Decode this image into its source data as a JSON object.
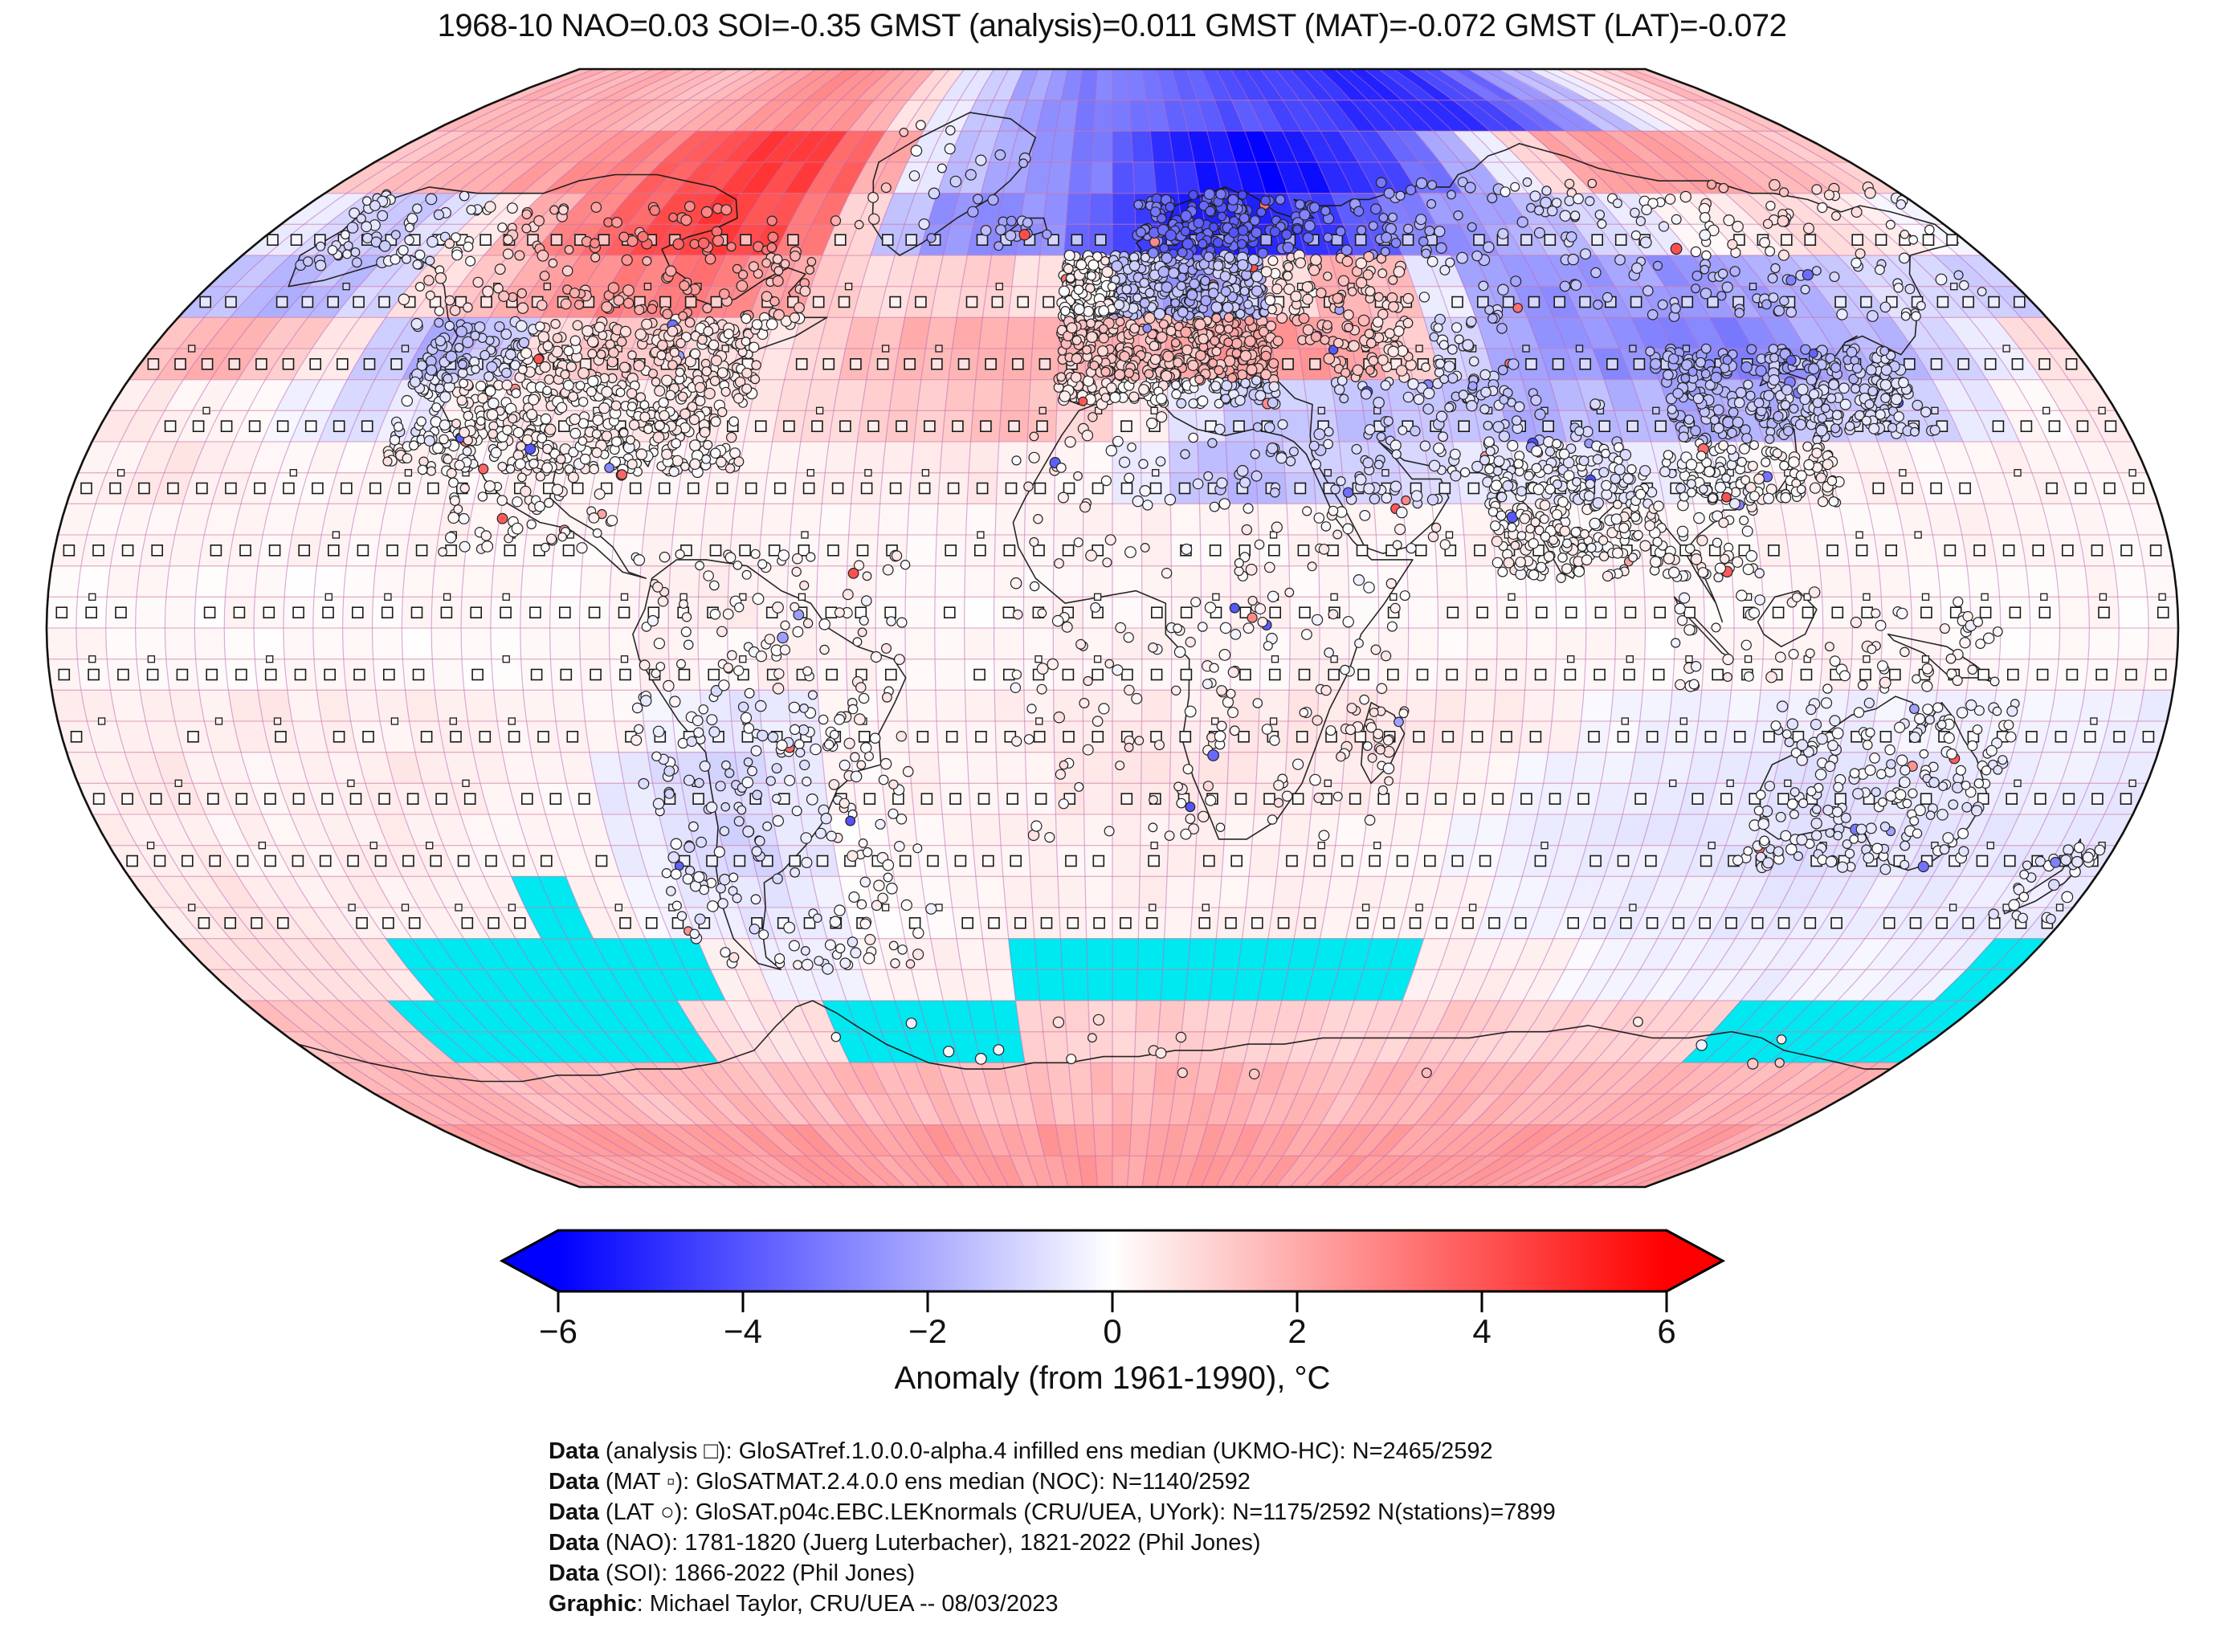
{
  "title": "1968-10 NAO=0.03 SOI=-0.35 GMST (analysis)=0.011 GMST (MAT)=-0.072 GMST (LAT)=-0.072",
  "colorbar": {
    "label": "Anomaly (from 1961-1990), °C",
    "ticks": [
      "−6",
      "−4",
      "−2",
      "0",
      "2",
      "4",
      "6"
    ],
    "tick_values": [
      -6,
      -4,
      -2,
      0,
      2,
      4,
      6
    ],
    "min": -6,
    "max": 6,
    "color_negative": "#0000ff",
    "color_zero": "#ffffff",
    "color_positive": "#ff0000",
    "missing_color": "#00e8f0"
  },
  "footnotes": [
    {
      "prefix": "Data",
      "rest": " (analysis □): GloSATref.1.0.0.0-alpha.4 infilled ens median (UKMO-HC): N=2465/2592"
    },
    {
      "prefix": "Data",
      "rest": " (MAT ▫): GloSATMAT.2.4.0.0 ens median (NOC): N=1140/2592"
    },
    {
      "prefix": "Data",
      "rest": " (LAT ○): GloSAT.p04c.EBC.LEKnormals (CRU/UEA, UYork): N=1175/2592 N(stations)=7899"
    },
    {
      "prefix": "Data",
      "rest": " (NAO): 1781-1820 (Juerg Luterbacher), 1821-2022 (Phil Jones)"
    },
    {
      "prefix": "Data",
      "rest": " (SOI): 1866-2022 (Phil Jones)"
    },
    {
      "prefix": "Graphic",
      "rest": ": Michael Taylor, CRU/UEA -- 08/03/2023"
    }
  ],
  "markers": {
    "analysis": {
      "symbol": "□",
      "coverage": "2465/2592"
    },
    "mat": {
      "symbol": "▫",
      "coverage": "1140/2592"
    },
    "lat": {
      "symbol": "○",
      "coverage": "1175/2592",
      "stations": 7899
    }
  },
  "chart_data": {
    "type": "heatmap",
    "subtype": "global-temperature-anomaly-map",
    "projection": "robinson-like",
    "month": "1968-10",
    "indices": {
      "NAO": 0.03,
      "SOI": -0.35,
      "GMST_analysis": 0.011,
      "GMST_MAT": -0.072,
      "GMST_LAT": -0.072
    },
    "units": "°C anomaly from 1961-1990",
    "value_range": [
      -6,
      6
    ],
    "missing_value_marker": "C",
    "missing_meaning": "cyan grid cells with no data (Southern Ocean)",
    "grid": {
      "lat_start": 90,
      "lat_step": -10,
      "lon_start": -180,
      "lon_step": 10,
      "rows": 18,
      "cols": 36
    },
    "anomaly_grid": [
      [
        1.8,
        1.8,
        1.8,
        1.8,
        1.8,
        1.6,
        1.8,
        2.0,
        2.4,
        2.6,
        2.4,
        2.0,
        0.8,
        -0.5,
        -1.2,
        -2.0,
        -2.6,
        -3.0,
        -3.2,
        -3.5,
        -3.8,
        -4.0,
        -4.2,
        -4.5,
        -4.8,
        -5.0,
        -5.0,
        -4.8,
        -4.2,
        -3.5,
        -2.5,
        -1.5,
        -0.5,
        0.5,
        1.0,
        1.5
      ],
      [
        1.2,
        1.5,
        1.8,
        2.0,
        2.2,
        2.5,
        3.0,
        3.6,
        4.2,
        4.6,
        4.4,
        3.6,
        2.0,
        -0.5,
        -1.5,
        -2.0,
        -2.5,
        -3.0,
        -4.0,
        -5.0,
        -5.5,
        -5.8,
        -5.5,
        -5.0,
        -4.5,
        -3.5,
        -2.0,
        -0.5,
        1.0,
        2.0,
        2.2,
        2.2,
        2.0,
        1.8,
        1.5,
        1.2
      ],
      [
        -0.5,
        -1.0,
        -1.2,
        -0.8,
        0.5,
        1.8,
        2.8,
        3.6,
        4.4,
        4.6,
        4.2,
        3.2,
        1.0,
        -1.5,
        -2.5,
        -2.8,
        -2.5,
        -3.5,
        -4.5,
        -5.2,
        -5.2,
        -5.0,
        -4.5,
        -3.8,
        -3.0,
        -2.5,
        -2.0,
        -1.5,
        -1.0,
        -0.5,
        0.2,
        0.5,
        0.8,
        0.8,
        0.5,
        -0.2
      ],
      [
        -1.5,
        -1.8,
        -1.5,
        -1.0,
        0.8,
        1.5,
        2.0,
        2.5,
        3.0,
        3.2,
        2.8,
        2.2,
        1.2,
        0.8,
        1.0,
        1.2,
        0.8,
        0.3,
        -1.8,
        -2.5,
        -2.0,
        0.8,
        1.8,
        1.5,
        -0.5,
        -2.0,
        -2.5,
        -2.5,
        -2.2,
        -2.5,
        -2.2,
        -1.8,
        -1.2,
        -0.8,
        -0.8,
        -1.2
      ],
      [
        1.5,
        1.8,
        1.2,
        0.5,
        -1.2,
        -1.8,
        -1.2,
        0.8,
        1.4,
        1.2,
        0.8,
        0.6,
        1.0,
        1.5,
        1.8,
        1.8,
        2.0,
        1.8,
        1.8,
        2.2,
        2.6,
        2.4,
        2.0,
        1.2,
        -1.0,
        -2.0,
        -2.4,
        -2.6,
        -2.8,
        -3.0,
        -2.6,
        -2.0,
        -1.6,
        -1.0,
        -0.5,
        0.8
      ],
      [
        0.5,
        0.3,
        0.2,
        -0.3,
        -0.8,
        -0.5,
        0.3,
        0.5,
        0.4,
        0.5,
        0.6,
        0.5,
        0.8,
        1.0,
        1.2,
        1.4,
        1.5,
        1.0,
        0.4,
        -0.6,
        -1.2,
        -1.2,
        -1.5,
        -1.2,
        -1.5,
        -1.8,
        -1.5,
        -1.8,
        -2.0,
        -1.8,
        -1.5,
        -1.2,
        -1.0,
        -0.5,
        0.2,
        0.4
      ],
      [
        0.3,
        0.5,
        0.4,
        0.2,
        0.2,
        0.3,
        0.2,
        0.3,
        0.3,
        0.2,
        0.2,
        0.3,
        0.3,
        0.4,
        0.4,
        0.5,
        0.4,
        0.2,
        -0.5,
        -1.4,
        -1.6,
        -1.2,
        -1.0,
        -0.8,
        -0.6,
        -0.5,
        -0.6,
        -0.4,
        -0.2,
        0.2,
        0.3,
        0.3,
        0.2,
        0.3,
        0.3,
        0.3
      ],
      [
        0.2,
        0.3,
        0.2,
        0.2,
        0.3,
        0.2,
        0.3,
        0.2,
        0.2,
        0.2,
        0.3,
        0.3,
        0.2,
        0.2,
        0.2,
        0.2,
        0.2,
        0.3,
        0.3,
        0.2,
        0.2,
        0.3,
        0.2,
        0.2,
        0.3,
        0.2,
        0.2,
        0.2,
        0.2,
        0.3,
        0.2,
        0.2,
        0.3,
        0.2,
        0.2,
        0.2
      ],
      [
        0.1,
        0.2,
        0.1,
        0.2,
        0.1,
        0.1,
        0.2,
        0.2,
        0.1,
        0.2,
        0.3,
        0.4,
        0.3,
        0.2,
        0.2,
        0.1,
        0.2,
        0.3,
        0.2,
        0.2,
        0.3,
        0.2,
        0.1,
        0.2,
        0.2,
        0.1,
        0.2,
        0.2,
        0.1,
        0.2,
        0.2,
        0.2,
        0.1,
        0.1,
        0.2,
        0.1
      ],
      [
        0.2,
        0.1,
        0.2,
        0.1,
        0.2,
        0.2,
        0.1,
        0.1,
        0.2,
        0.2,
        0.3,
        0.2,
        0.4,
        0.3,
        0.2,
        0.2,
        0.2,
        0.3,
        0.3,
        0.2,
        0.2,
        0.3,
        0.2,
        0.2,
        0.3,
        0.2,
        0.2,
        0.1,
        0.2,
        0.2,
        0.3,
        0.2,
        0.2,
        0.1,
        0.2,
        0.2
      ],
      [
        0.4,
        0.3,
        0.4,
        0.5,
        0.4,
        0.3,
        0.4,
        0.3,
        0.3,
        0.2,
        -0.3,
        -0.6,
        -0.5,
        0.2,
        0.3,
        0.3,
        0.4,
        0.5,
        0.5,
        0.4,
        0.5,
        0.6,
        0.6,
        0.5,
        0.4,
        0.3,
        -0.2,
        -0.3,
        -0.3,
        -0.4,
        -0.4,
        -0.3,
        -0.3,
        -0.2,
        -0.3,
        -0.4
      ],
      [
        0.4,
        0.5,
        0.4,
        0.3,
        0.4,
        0.5,
        0.4,
        0.3,
        0.2,
        -0.5,
        -0.8,
        -0.9,
        -0.6,
        0.2,
        0.3,
        0.3,
        0.3,
        0.5,
        0.6,
        0.6,
        0.5,
        0.4,
        0.4,
        0.3,
        0.3,
        -0.3,
        -0.4,
        -0.5,
        -0.5,
        -0.6,
        -0.7,
        -0.6,
        -0.5,
        -0.4,
        -0.4,
        -0.5
      ],
      [
        0.4,
        0.4,
        0.3,
        0.3,
        0.4,
        0.4,
        0.3,
        0.2,
        0.2,
        -0.4,
        -0.8,
        -1.0,
        -0.6,
        0.1,
        0.2,
        0.3,
        0.3,
        0.3,
        0.4,
        0.4,
        0.3,
        0.3,
        0.2,
        0.2,
        -0.2,
        -0.4,
        -0.5,
        -0.5,
        -0.6,
        -0.6,
        -0.7,
        -0.6,
        -0.6,
        -0.5,
        -0.6,
        -0.5
      ],
      [
        0.5,
        0.6,
        0.5,
        0.4,
        0.4,
        0.3,
        0.3,
        "C",
        0.3,
        -0.2,
        -0.5,
        -0.6,
        -0.4,
        0.1,
        0.2,
        0.2,
        0.3,
        0.3,
        0.4,
        0.3,
        0.3,
        0.4,
        0.3,
        0.2,
        0.2,
        -0.2,
        -0.3,
        -0.4,
        -0.4,
        -0.5,
        -0.5,
        -0.5,
        -0.4,
        -0.5,
        -0.5,
        -0.5
      ],
      [
        0.8,
        0.8,
        0.7,
        0.6,
        "C",
        "C",
        "C",
        "C",
        "C",
        "C",
        0.4,
        -0.3,
        -0.3,
        0.2,
        0.3,
        0.3,
        "C",
        "C",
        "C",
        "C",
        "C",
        "C",
        "C",
        "C",
        0.4,
        0.4,
        0.3,
        -0.2,
        -0.3,
        -0.3,
        -0.3,
        -0.4,
        -0.3,
        -0.3,
        -0.4,
        "C"
      ],
      [
        1.5,
        1.4,
        1.3,
        "C",
        "C",
        "C",
        "C",
        "C",
        "C",
        0.8,
        0.6,
        0.8,
        "C",
        "C",
        "C",
        "C",
        1.0,
        1.0,
        1.1,
        1.2,
        1.2,
        1.1,
        1.0,
        1.0,
        1.1,
        1.2,
        1.1,
        1.0,
        1.0,
        1.1,
        1.0,
        "C",
        "C",
        "C",
        "C",
        "C"
      ],
      [
        1.8,
        1.8,
        1.7,
        1.6,
        1.6,
        1.5,
        1.5,
        1.6,
        1.6,
        1.5,
        1.5,
        1.6,
        1.7,
        1.6,
        1.5,
        1.5,
        1.6,
        1.6,
        1.7,
        1.8,
        1.8,
        1.7,
        1.6,
        1.6,
        1.7,
        1.8,
        1.8,
        1.7,
        1.6,
        1.6,
        1.7,
        1.8,
        1.8,
        1.7,
        1.7,
        1.8
      ],
      [
        2.3,
        2.3,
        2.2,
        2.2,
        2.3,
        2.3,
        2.2,
        2.2,
        2.3,
        2.3,
        2.2,
        2.2,
        2.3,
        2.3,
        2.2,
        2.2,
        2.3,
        2.3,
        2.2,
        2.2,
        2.3,
        2.3,
        2.2,
        2.2,
        2.3,
        2.3,
        2.2,
        2.2,
        2.3,
        2.3,
        2.2,
        2.2,
        2.3,
        2.3,
        2.2,
        2.2
      ]
    ],
    "notable_features": [
      "Strong warm anomaly (+4 to +5 °C) over Arctic Canada / Baffin Island / Hudson Bay",
      "Strong cold anomaly (−5 to −6 °C) over Scandinavia, Barents Sea and NW Russia",
      "Cold anomalies (−2 to −3 °C) across central and eastern Asia",
      "Warm band over the East Siberian Arctic",
      "Warm patch over eastern Europe / western Russia and Iberia",
      "Mild warm anomaly (+1.5 to +2.5 °C) ring over Antarctica",
      "Cyan cells mark missing data in the Southern Ocean"
    ],
    "legend_position": "bottom-colorbar",
    "grid_lines": "5-degree graticule, purple"
  }
}
